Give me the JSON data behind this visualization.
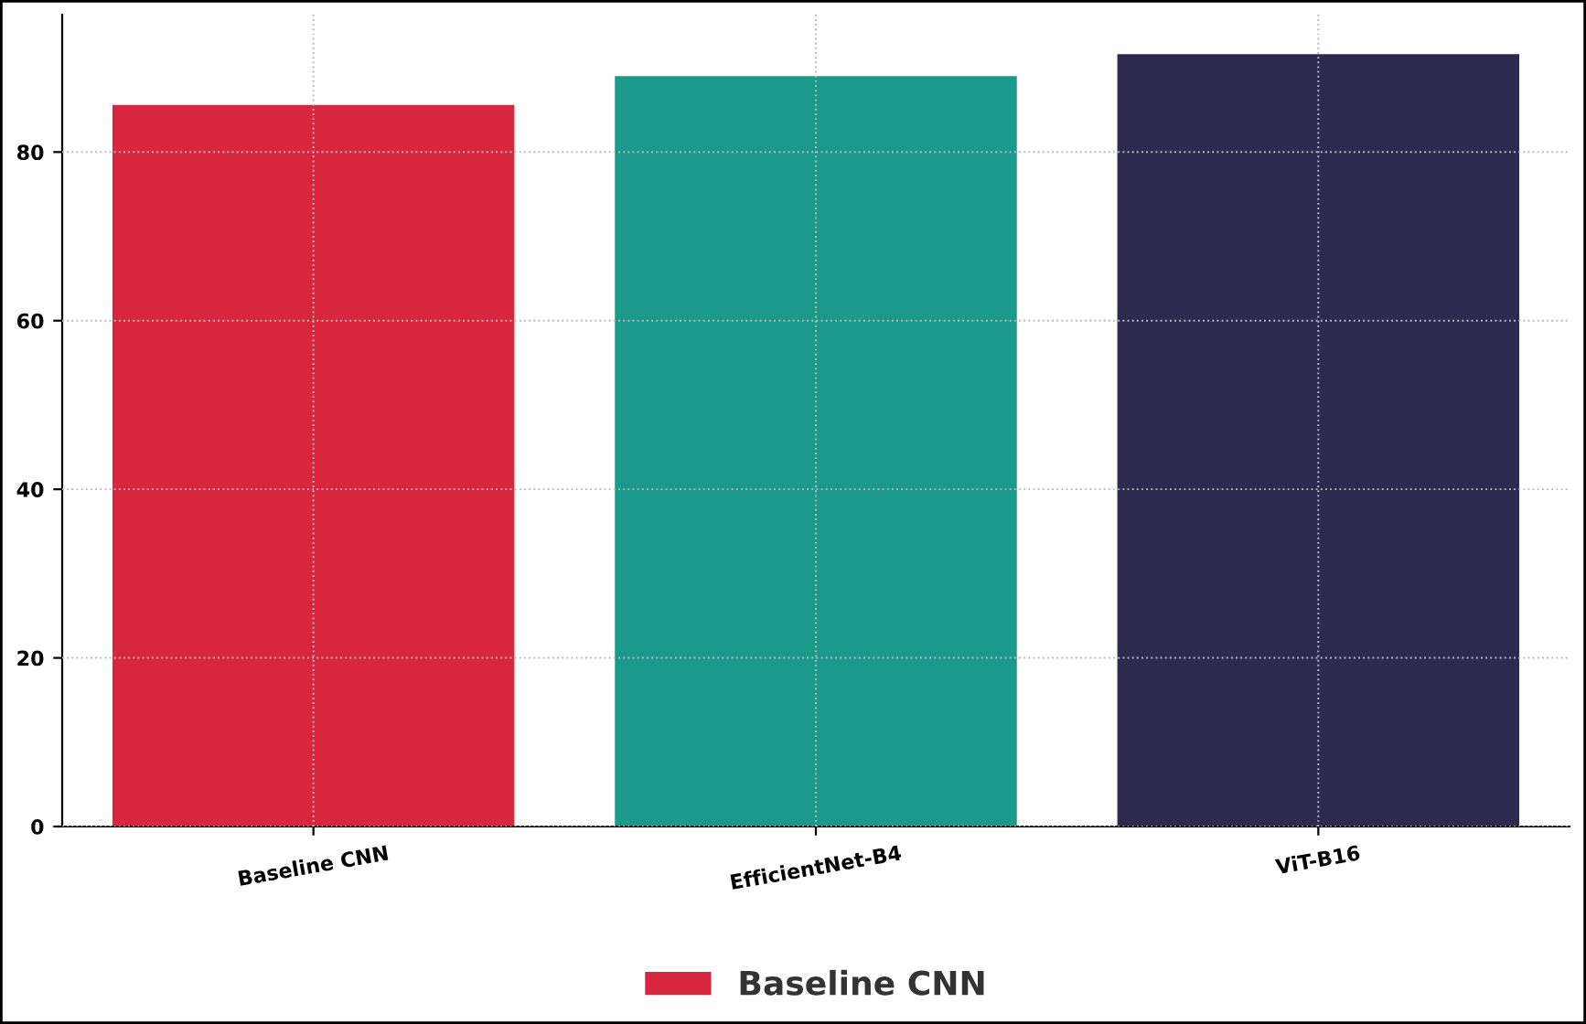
{
  "chart_data": {
    "type": "bar",
    "categories": [
      "Baseline CNN",
      "EfficientNet-B4",
      "ViT-B16"
    ],
    "series": [
      {
        "name": "Baseline CNN",
        "colors": [
          "#d7263d",
          "#1b998b",
          "#2e294e"
        ],
        "values": [
          85.6,
          89.0,
          91.6
        ]
      }
    ],
    "ylim": [
      0,
      96.3
    ],
    "yticks": [
      0,
      20,
      40,
      60,
      80
    ],
    "grid": true,
    "legend": "bottom"
  }
}
